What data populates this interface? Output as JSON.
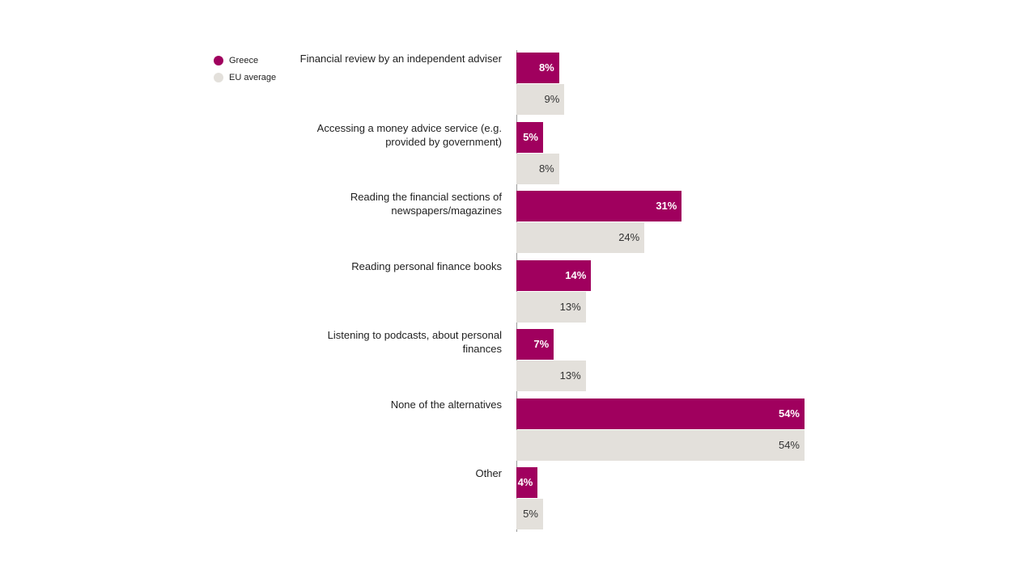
{
  "colors": {
    "greece": "#a0005e",
    "eu": "#e3e0db"
  },
  "legend": [
    {
      "name": "Greece",
      "color_key": "greece"
    },
    {
      "name": "EU average",
      "color_key": "eu"
    }
  ],
  "chart_data": {
    "type": "bar",
    "orientation": "horizontal",
    "categories": [
      "Financial review by an independent adviser",
      "Accessing a money advice service (e.g. provided by government)",
      "Reading the financial sections of newspapers/magazines",
      "Reading personal finance books",
      "Listening to podcasts, about personal finances",
      "None of the alternatives",
      "Other"
    ],
    "series": [
      {
        "name": "Greece",
        "values": [
          8,
          5,
          31,
          14,
          7,
          54,
          4
        ],
        "labels": [
          "8%",
          "5%",
          "31%",
          "14%",
          "7%",
          "54%",
          "4%"
        ]
      },
      {
        "name": "EU average",
        "values": [
          9,
          8,
          24,
          13,
          13,
          54,
          5
        ],
        "labels": [
          "9%",
          "8%",
          "24%",
          "13%",
          "13%",
          "54%",
          "5%"
        ]
      }
    ],
    "xlim": [
      0,
      54
    ],
    "legend_position": "top-left",
    "grid": false,
    "title": "",
    "xlabel": "",
    "ylabel": ""
  }
}
